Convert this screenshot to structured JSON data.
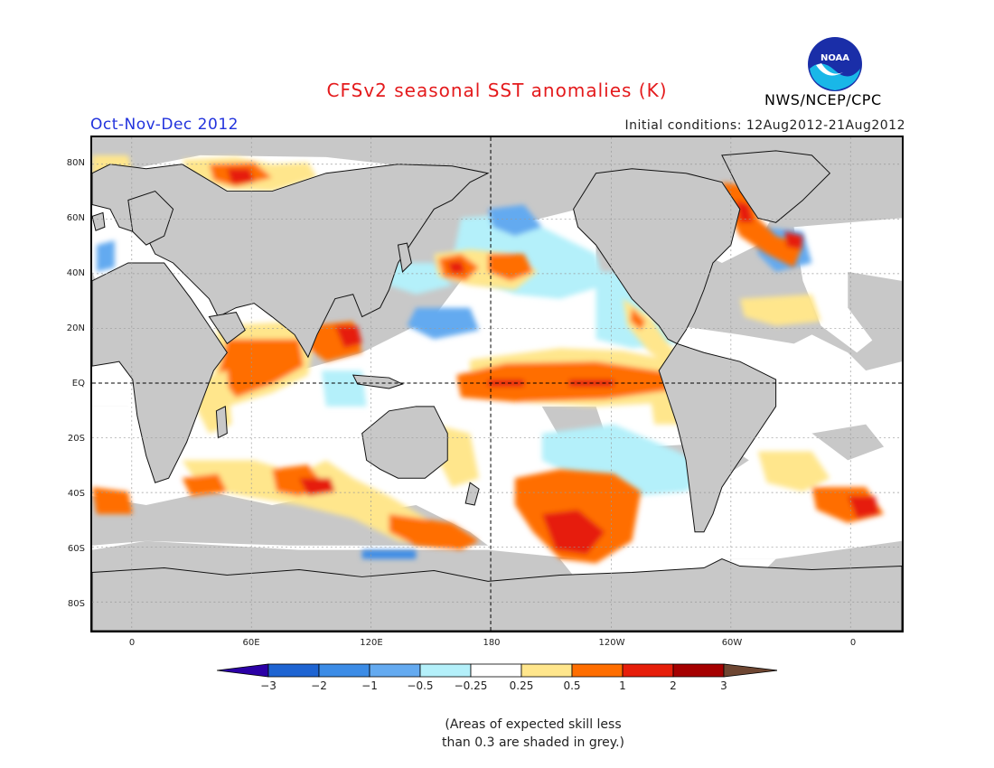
{
  "header": {
    "title": "CFSv2 seasonal SST anomalies (K)",
    "period": "Oct-Nov-Dec 2012",
    "initial_conditions": "Initial conditions: 12Aug2012-21Aug2012",
    "agency": "NWS/NCEP/CPC",
    "logo_text": "NOAA"
  },
  "map": {
    "lat_labels": [
      "80N",
      "60N",
      "40N",
      "20N",
      "EQ",
      "20S",
      "40S",
      "60S",
      "80S"
    ],
    "lon_labels": [
      "0",
      "60E",
      "120E",
      "180",
      "120W",
      "60W",
      "0"
    ]
  },
  "legend": {
    "ticks": [
      "−3",
      "−2",
      "−1",
      "−0.5",
      "−0.25",
      "0.25",
      "0.5",
      "1",
      "2",
      "3"
    ],
    "colors": [
      "#2b00a6",
      "#1e64d2",
      "#3c8ce6",
      "#64aaf0",
      "#b4f0fa",
      "#ffffff",
      "#ffe68c",
      "#ff6e00",
      "#e61e0a",
      "#a50000",
      "#6e4632"
    ]
  },
  "note": {
    "line1": "(Areas of expected skill less",
    "line2": "than 0.3 are shaded in grey.)"
  }
}
